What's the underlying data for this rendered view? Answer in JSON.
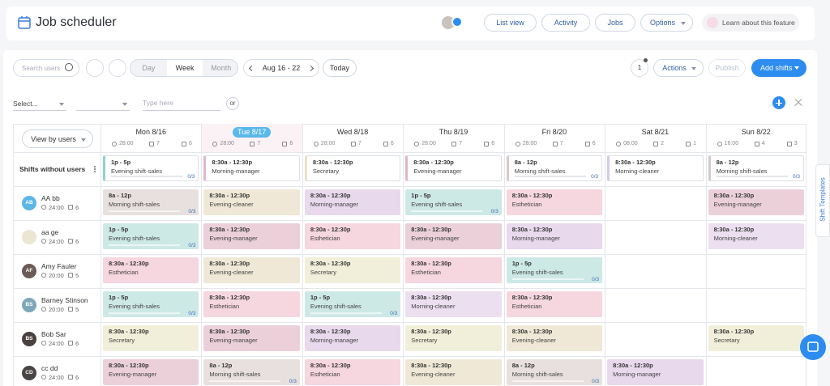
{
  "header": {
    "title": "Job scheduler",
    "buttons": [
      "List view",
      "Activity",
      "Jobs",
      "Options"
    ],
    "learn": "Learn about this feature"
  },
  "toolbar": {
    "search_placeholder": "Search users",
    "views": [
      "Day",
      "Week",
      "Month"
    ],
    "active_view": 1,
    "date_range": "Aug 16 - 22",
    "today": "Today",
    "notifications": "1",
    "actions": "Actions",
    "publish": "Publish",
    "add_shifts": "Add shifts"
  },
  "filters": {
    "select": "Select...",
    "input_placeholder": "Type here",
    "or": "or"
  },
  "side_tab": "Shift Templates",
  "schedule": {
    "view_by": "View by users",
    "today_index": 1,
    "days": [
      {
        "label": "Mon 8/16",
        "hours": "28:00",
        "shifts": "7",
        "users": "6"
      },
      {
        "label": "Tue 8/17",
        "hours": "28:00",
        "shifts": "7",
        "users": "6"
      },
      {
        "label": "Wed 8/18",
        "hours": "28:00",
        "shifts": "7",
        "users": "6"
      },
      {
        "label": "Thu 8/19",
        "hours": "28:00",
        "shifts": "7",
        "users": "6"
      },
      {
        "label": "Fri 8/20",
        "hours": "28:00",
        "shifts": "7",
        "users": "6"
      },
      {
        "label": "Sat 8/21",
        "hours": "08:00",
        "shifts": "2",
        "users": "1"
      },
      {
        "label": "Sun 8/22",
        "hours": "16:00",
        "shifts": "4",
        "users": "3"
      }
    ],
    "unassigned": {
      "label": "Shifts without users",
      "shifts": [
        {
          "time": "1p - 5p",
          "role": "Evening shift-sales",
          "color": "#8fd3cc",
          "filled": "0/3"
        },
        {
          "time": "8:30a - 12:30p",
          "role": "Morning-manager",
          "color": "#dfb9cb"
        },
        {
          "time": "8:30a - 12:30p",
          "role": "Secretary",
          "color": "#e9e3c4"
        },
        {
          "time": "8:30a - 12:30p",
          "role": "Evening-manager",
          "color": "#e0b6c6"
        },
        {
          "time": "8a - 12p",
          "role": "Morning shift-sales",
          "color": "#d6cbc9",
          "filled": "0/3"
        },
        {
          "time": "8:30a - 12:30p",
          "role": "Morning-cleaner",
          "color": "#d6cae6"
        },
        {
          "time": "8a - 12p",
          "role": "Morning shift-sales",
          "color": "#d6cbc9",
          "filled": "0/3"
        }
      ]
    },
    "users": [
      {
        "name": "AA bb",
        "initials": "AB",
        "avatar": "#5cb6e6",
        "hours": "24:00",
        "shifts": "6",
        "cells": [
          {
            "time": "8a - 12p",
            "role": "Morning shift-sales",
            "color": "#e7e0df",
            "filled": "0/3"
          },
          {
            "time": "8:30a - 12:30p",
            "role": "Evening-cleaner",
            "color": "#efe8d6"
          },
          {
            "time": "8:30a - 12:30p",
            "role": "Morning-manager",
            "color": "#e8d9ec"
          },
          {
            "time": "1p - 5p",
            "role": "Evening shift-sales",
            "color": "#cde9e6",
            "filled": "0/3"
          },
          {
            "time": "8:30a - 12:30p",
            "role": "Esthetician",
            "color": "#f6d6df"
          },
          null,
          {
            "time": "8:30a - 12:30p",
            "role": "Evening-manager",
            "color": "#ebd0da"
          }
        ]
      },
      {
        "name": "aa ge",
        "initials": null,
        "avatar": "#ece5d2",
        "hours": "24:00",
        "shifts": "6",
        "cells": [
          {
            "time": "1p - 5p",
            "role": "Evening shift-sales",
            "color": "#cde9e6",
            "filled": "0/3"
          },
          {
            "time": "8:30a - 12:30p",
            "role": "Evening-manager",
            "color": "#ebd0da"
          },
          {
            "time": "8:30a - 12:30p",
            "role": "Esthetician",
            "color": "#f6d6df"
          },
          {
            "time": "8:30a - 12:30p",
            "role": "Evening-manager",
            "color": "#ebd0da"
          },
          {
            "time": "8:30a - 12:30p",
            "role": "Morning-manager",
            "color": "#e8d9ec"
          },
          null,
          {
            "time": "8:30a - 12:30p",
            "role": "Morning-cleaner",
            "color": "#ebdff0"
          }
        ]
      },
      {
        "name": "Amy Fauler",
        "initials": "AF",
        "avatar": "#6b5b56",
        "hours": "20:00",
        "shifts": "5",
        "cells": [
          {
            "time": "8:30a - 12:30p",
            "role": "Esthetician",
            "color": "#f6d6df"
          },
          {
            "time": "8:30a - 12:30p",
            "role": "Evening-cleaner",
            "color": "#efe8d6"
          },
          {
            "time": "8:30a - 12:30p",
            "role": "Secretary",
            "color": "#f1efd9"
          },
          {
            "time": "8:30a - 12:30p",
            "role": "Esthetician",
            "color": "#f6d6df"
          },
          {
            "time": "1p - 5p",
            "role": "Evening shift-sales",
            "color": "#cde9e6",
            "filled": "0/3"
          },
          null,
          null
        ]
      },
      {
        "name": "Barney Stinson",
        "initials": "BS",
        "avatar": "#7ea8b9",
        "hours": "20:00",
        "shifts": "5",
        "cells": [
          {
            "time": "1p - 5p",
            "role": "Evening shift-sales",
            "color": "#cde9e6",
            "filled": "0/3"
          },
          {
            "time": "8:30a - 12:30p",
            "role": "Esthetician",
            "color": "#f6d6df"
          },
          {
            "time": "1p - 5p",
            "role": "Evening shift-sales",
            "color": "#cde9e6",
            "filled": "0/3"
          },
          {
            "time": "8:30a - 12:30p",
            "role": "Morning-cleaner",
            "color": "#ebdff0"
          },
          {
            "time": "8:30a - 12:30p",
            "role": "Esthetician",
            "color": "#f6d6df"
          },
          null,
          null
        ]
      },
      {
        "name": "Bob Sar",
        "initials": "BS",
        "avatar": "#4a4040",
        "hours": "24:00",
        "shifts": "6",
        "cells": [
          {
            "time": "8:30a - 12:30p",
            "role": "Secretary",
            "color": "#f1efd9"
          },
          {
            "time": "8:30a - 12:30p",
            "role": "Evening-manager",
            "color": "#ebd0da"
          },
          {
            "time": "8:30a - 12:30p",
            "role": "Morning-manager",
            "color": "#e8d9ec"
          },
          {
            "time": "8:30a - 12:30p",
            "role": "Secretary",
            "color": "#f1efd9"
          },
          {
            "time": "8:30a - 12:30p",
            "role": "Evening-cleaner",
            "color": "#efe8d6"
          },
          null,
          {
            "time": "8:30a - 12:30p",
            "role": "Secretary",
            "color": "#f1efd9"
          }
        ]
      },
      {
        "name": "cc dd",
        "initials": "CD",
        "avatar": "#4a4545",
        "hours": "24:00",
        "shifts": "6",
        "cells": [
          {
            "time": "8:30a - 12:30p",
            "role": "Evening-manager",
            "color": "#ebd0da"
          },
          {
            "time": "8a - 12p",
            "role": "Morning shift-sales",
            "color": "#e7e0df",
            "filled": "0/3"
          },
          {
            "time": "8:30a - 12:30p",
            "role": "Esthetician",
            "color": "#f6d6df"
          },
          {
            "time": "8:30a - 12:30p",
            "role": "Evening-cleaner",
            "color": "#efe8d6"
          },
          {
            "time": "8a - 12p",
            "role": "Morning shift-sales",
            "color": "#e7e0df",
            "filled": "0/3"
          },
          {
            "time": "8:30a - 12:30p",
            "role": "Morning-manager",
            "color": "#e8d9ec"
          },
          null
        ]
      }
    ]
  }
}
